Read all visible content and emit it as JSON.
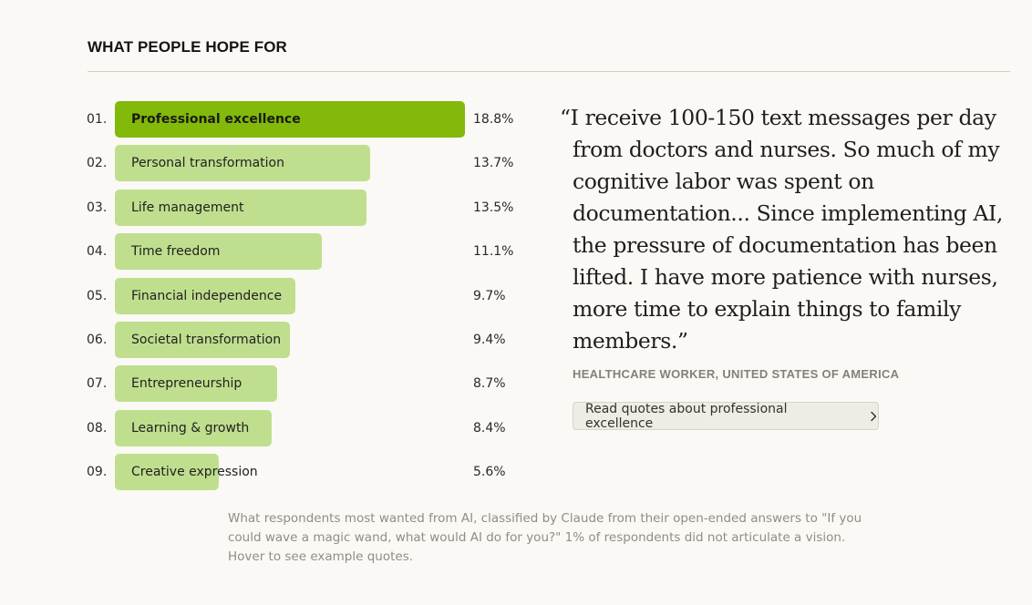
{
  "section": {
    "title": "WHAT PEOPLE HOPE FOR"
  },
  "chart_data": {
    "type": "bar",
    "orientation": "horizontal",
    "title": "WHAT PEOPLE HOPE FOR",
    "ranks": [
      "01.",
      "02.",
      "03.",
      "04.",
      "05.",
      "06.",
      "07.",
      "08.",
      "09."
    ],
    "categories": [
      "Professional excellence",
      "Personal transformation",
      "Life management",
      "Time freedom",
      "Financial independence",
      "Societal transformation",
      "Entrepreneurship",
      "Learning & growth",
      "Creative expression"
    ],
    "values": [
      18.8,
      13.7,
      13.5,
      11.1,
      9.7,
      9.4,
      8.7,
      8.4,
      5.6
    ],
    "value_labels": [
      "18.8%",
      "13.7%",
      "13.5%",
      "11.1%",
      "9.7%",
      "9.4%",
      "8.7%",
      "8.4%",
      "5.6%"
    ],
    "unit": "%",
    "xlim": [
      0,
      18.8
    ],
    "highlighted_index": 0,
    "colors": {
      "highlight": "#82b90b",
      "default": "#bfdf8f"
    }
  },
  "quote": {
    "text": "“I receive 100-150 text messages per day from doctors and nurses. So much of my cognitive labor was spent on documentation... Since implementing AI, the pressure of documentation has been lifted. I have more patience with nurses, more time to explain things to family members.”",
    "attribution": "HEALTHCARE WORKER, UNITED STATES OF AMERICA",
    "button_label": "Read quotes about professional excellence",
    "button_icon": "chevron-right-icon"
  },
  "caption": "What respondents most wanted from AI, classified by Claude from their open-ended answers to \"If you could wave a magic wand, what would AI do for you?\" 1% of respondents did not articulate a vision. Hover to see example quotes."
}
